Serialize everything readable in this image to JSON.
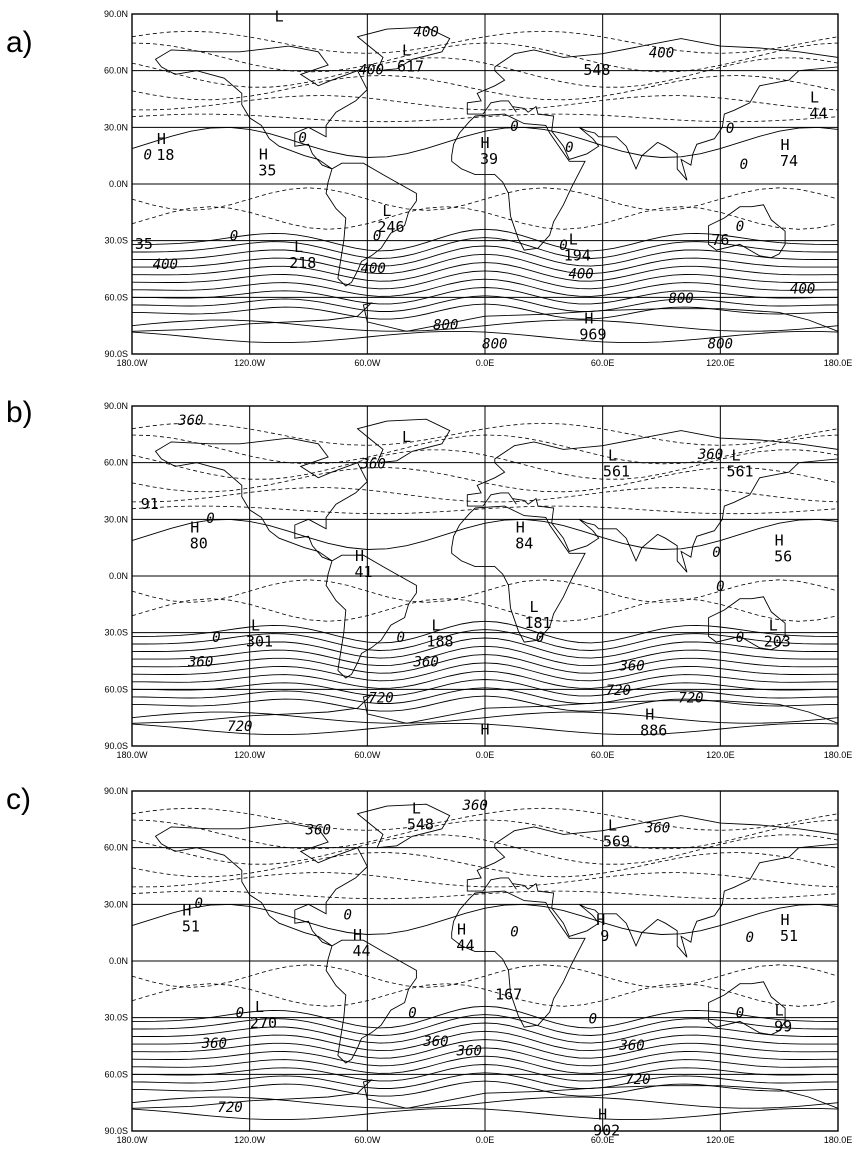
{
  "panels": [
    {
      "letter": "a)",
      "systems": [
        {
          "kind": "L",
          "value": "",
          "lon": -105,
          "lat": 85
        },
        {
          "kind": "L",
          "value": "617",
          "lon": -40,
          "lat": 67
        },
        {
          "kind": "",
          "value": "548",
          "lon": 55,
          "lat": 65
        },
        {
          "kind": "L",
          "value": "44",
          "lon": 168,
          "lat": 42
        },
        {
          "kind": "H",
          "value": "18",
          "lon": -165,
          "lat": 20
        },
        {
          "kind": "H",
          "value": "35",
          "lon": -113,
          "lat": 12
        },
        {
          "kind": "H",
          "value": "39",
          "lon": 0,
          "lat": 18
        },
        {
          "kind": "H",
          "value": "74",
          "lon": 153,
          "lat": 17
        },
        {
          "kind": "",
          "value": "35",
          "lon": -176,
          "lat": -27
        },
        {
          "kind": "L",
          "value": "246",
          "lon": -50,
          "lat": -18
        },
        {
          "kind": "L",
          "value": "218",
          "lon": -95,
          "lat": -37
        },
        {
          "kind": "L",
          "value": "194",
          "lon": 45,
          "lat": -33
        },
        {
          "kind": "",
          "value": "76",
          "lon": 118,
          "lat": -25
        },
        {
          "kind": "H",
          "value": "969",
          "lon": 53,
          "lat": -75
        }
      ],
      "contours": [
        {
          "value": "400",
          "lon": -30,
          "lat": 78
        },
        {
          "value": "400",
          "lon": -58,
          "lat": 58
        },
        {
          "value": "400",
          "lon": 90,
          "lat": 67
        },
        {
          "value": "0",
          "lon": -172,
          "lat": 13
        },
        {
          "value": "0",
          "lon": -93,
          "lat": 22
        },
        {
          "value": "0",
          "lon": 15,
          "lat": 28
        },
        {
          "value": "0",
          "lon": 43,
          "lat": 17
        },
        {
          "value": "0",
          "lon": 125,
          "lat": 27
        },
        {
          "value": "0",
          "lon": 132,
          "lat": 8
        },
        {
          "value": "0",
          "lon": -128,
          "lat": -30
        },
        {
          "value": "0",
          "lon": -55,
          "lat": -30
        },
        {
          "value": "0",
          "lon": 40,
          "lat": -35
        },
        {
          "value": "0",
          "lon": 130,
          "lat": -25
        },
        {
          "value": "400",
          "lon": -163,
          "lat": -45
        },
        {
          "value": "400",
          "lon": -57,
          "lat": -47
        },
        {
          "value": "400",
          "lon": 49,
          "lat": -50
        },
        {
          "value": "400",
          "lon": 162,
          "lat": -58
        },
        {
          "value": "800",
          "lon": -20,
          "lat": -77
        },
        {
          "value": "800",
          "lon": 100,
          "lat": -63
        },
        {
          "value": "800",
          "lon": 5,
          "lat": -87
        },
        {
          "value": "800",
          "lon": 120,
          "lat": -87
        }
      ]
    },
    {
      "letter": "b)",
      "systems": [
        {
          "kind": "L",
          "value": "",
          "lon": -40,
          "lat": 70
        },
        {
          "kind": "L",
          "value": "561",
          "lon": 65,
          "lat": 60
        },
        {
          "kind": "L",
          "value": "561",
          "lon": 128,
          "lat": 60
        },
        {
          "kind": "",
          "value": "91",
          "lon": -173,
          "lat": 43
        },
        {
          "kind": "H",
          "value": "80",
          "lon": -148,
          "lat": 22
        },
        {
          "kind": "H",
          "value": "41",
          "lon": -64,
          "lat": 7
        },
        {
          "kind": "H",
          "value": "84",
          "lon": 18,
          "lat": 22
        },
        {
          "kind": "H",
          "value": "56",
          "lon": 150,
          "lat": 15
        },
        {
          "kind": "L",
          "value": "301",
          "lon": -117,
          "lat": -30
        },
        {
          "kind": "L",
          "value": "188",
          "lon": -25,
          "lat": -30
        },
        {
          "kind": "L",
          "value": "181",
          "lon": 25,
          "lat": -20
        },
        {
          "kind": "L",
          "value": "203",
          "lon": 147,
          "lat": -30
        },
        {
          "kind": "H",
          "value": "",
          "lon": 0,
          "lat": -85
        },
        {
          "kind": "H",
          "value": "886",
          "lon": 84,
          "lat": -77
        }
      ],
      "contours": [
        {
          "value": "360",
          "lon": -150,
          "lat": 80
        },
        {
          "value": "360",
          "lon": -57,
          "lat": 57
        },
        {
          "value": "360",
          "lon": 115,
          "lat": 62
        },
        {
          "value": "0",
          "lon": -140,
          "lat": 28
        },
        {
          "value": "0",
          "lon": 118,
          "lat": 10
        },
        {
          "value": "0",
          "lon": 120,
          "lat": -8
        },
        {
          "value": "0",
          "lon": -137,
          "lat": -35
        },
        {
          "value": "0",
          "lon": -43,
          "lat": -35
        },
        {
          "value": "0",
          "lon": 28,
          "lat": -35
        },
        {
          "value": "0",
          "lon": 130,
          "lat": -35
        },
        {
          "value": "360",
          "lon": -145,
          "lat": -48
        },
        {
          "value": "360",
          "lon": -30,
          "lat": -48
        },
        {
          "value": "360",
          "lon": 75,
          "lat": -50
        },
        {
          "value": "720",
          "lon": -53,
          "lat": -67
        },
        {
          "value": "720",
          "lon": 68,
          "lat": -63
        },
        {
          "value": "720",
          "lon": 105,
          "lat": -67
        },
        {
          "value": "720",
          "lon": -125,
          "lat": -82
        }
      ]
    },
    {
      "letter": "c)",
      "systems": [
        {
          "kind": "L",
          "value": "548",
          "lon": -35,
          "lat": 77
        },
        {
          "kind": "L",
          "value": "569",
          "lon": 65,
          "lat": 68
        },
        {
          "kind": "H",
          "value": "51",
          "lon": -152,
          "lat": 23
        },
        {
          "kind": "H",
          "value": "44",
          "lon": -65,
          "lat": 10
        },
        {
          "kind": "H",
          "value": "44",
          "lon": -12,
          "lat": 13
        },
        {
          "kind": "H",
          "value": "9",
          "lon": 59,
          "lat": 18
        },
        {
          "kind": "H",
          "value": "51",
          "lon": 153,
          "lat": 18
        },
        {
          "kind": "L",
          "value": "270",
          "lon": -115,
          "lat": -28
        },
        {
          "kind": "",
          "value": "167",
          "lon": 10,
          "lat": -13
        },
        {
          "kind": "L",
          "value": "99",
          "lon": 150,
          "lat": -30
        },
        {
          "kind": "H",
          "value": "902",
          "lon": 60,
          "lat": -85
        }
      ],
      "contours": [
        {
          "value": "360",
          "lon": -5,
          "lat": 80
        },
        {
          "value": "360",
          "lon": -85,
          "lat": 67
        },
        {
          "value": "360",
          "lon": 88,
          "lat": 68
        },
        {
          "value": "0",
          "lon": -146,
          "lat": 28
        },
        {
          "value": "0",
          "lon": -70,
          "lat": 22
        },
        {
          "value": "0",
          "lon": 15,
          "lat": 13
        },
        {
          "value": "0",
          "lon": 135,
          "lat": 10
        },
        {
          "value": "0",
          "lon": -125,
          "lat": -30
        },
        {
          "value": "0",
          "lon": -37,
          "lat": -30
        },
        {
          "value": "0",
          "lon": 55,
          "lat": -33
        },
        {
          "value": "0",
          "lon": 130,
          "lat": -30
        },
        {
          "value": "360",
          "lon": -138,
          "lat": -46
        },
        {
          "value": "360",
          "lon": -25,
          "lat": -45
        },
        {
          "value": "360",
          "lon": -8,
          "lat": -50
        },
        {
          "value": "360",
          "lon": 75,
          "lat": -47
        },
        {
          "value": "720",
          "lon": 78,
          "lat": -65
        },
        {
          "value": "720",
          "lon": -130,
          "lat": -80
        }
      ]
    }
  ],
  "lat_ticks": [
    "90.0N",
    "60.0N",
    "30.0N",
    "0.0N",
    "30.0S",
    "60.0S",
    "90.0S"
  ],
  "lon_ticks": [
    "180.0W",
    "120.0W",
    "60.0W",
    "0.0E",
    "60.0E",
    "120.0E",
    "180.0E"
  ]
}
